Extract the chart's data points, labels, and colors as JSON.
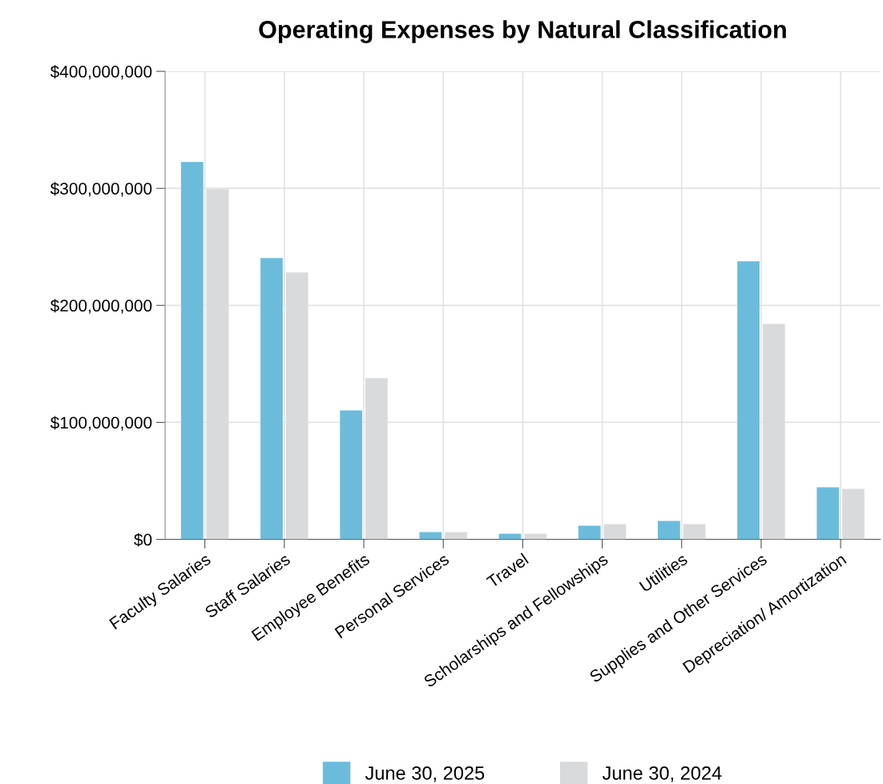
{
  "chart_data": {
    "type": "bar",
    "title": "Operating Expenses by Natural Classification",
    "categories": [
      "Faculty Salaries",
      "Staff Salaries",
      "Employee Benefits",
      "Personal Services",
      "Travel",
      "Scholarships and Fellowships",
      "Utilities",
      "Supplies and Other Services",
      "Depreciation/ Amortization"
    ],
    "series": [
      {
        "name": "June 30, 2025",
        "color": "#6bbcdb",
        "values": [
          322500000,
          240400000,
          110300000,
          6200000,
          4800000,
          11600000,
          15800000,
          237700000,
          44500000
        ]
      },
      {
        "name": "June 30, 2024",
        "color": "#d8dadb",
        "values": [
          299300000,
          228100000,
          137700000,
          6200000,
          4800000,
          13000000,
          13000000,
          184200000,
          43200000
        ]
      }
    ],
    "ylim": [
      0,
      400000000
    ],
    "yticks": [
      {
        "value": 0,
        "label": "$0"
      },
      {
        "value": 100000000,
        "label": "$100,000,000"
      },
      {
        "value": 200000000,
        "label": "$200,000,000"
      },
      {
        "value": 300000000,
        "label": "$300,000,000"
      },
      {
        "value": 400000000,
        "label": "$400,000,000"
      }
    ],
    "grid": true,
    "legend": "bottom"
  }
}
